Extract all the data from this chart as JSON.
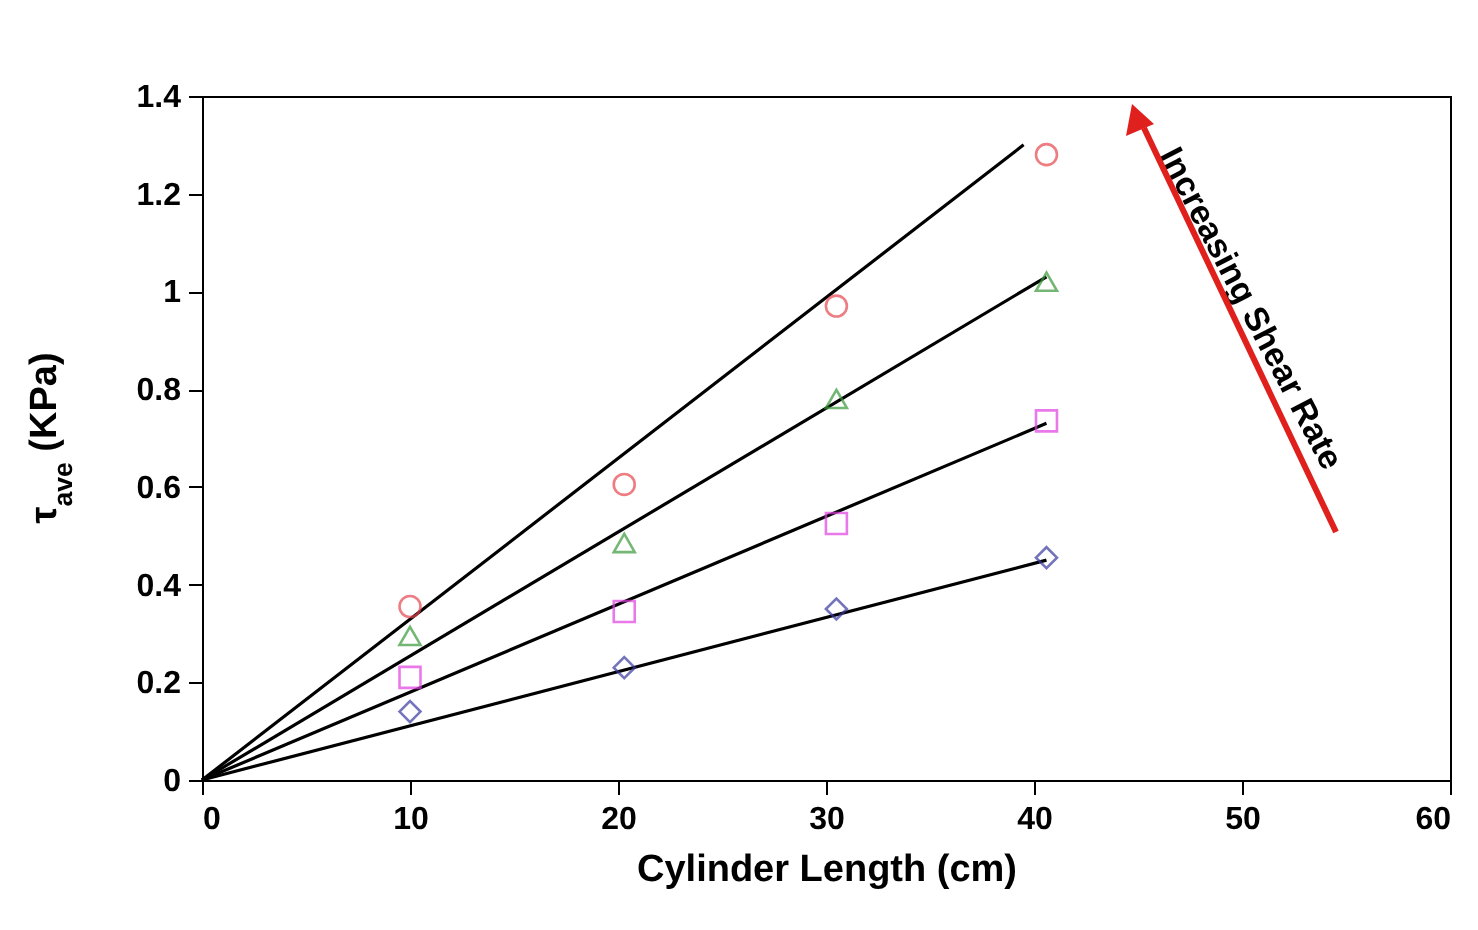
{
  "chart_data": {
    "type": "scatter",
    "xlabel": "Cylinder Length (cm)",
    "ylabel": "τ$_{ave}$ (KPa)",
    "xlim": [
      0,
      60
    ],
    "xticks": [
      0,
      10,
      20,
      30,
      40,
      50,
      60
    ],
    "ylim": [
      0,
      1.4
    ],
    "yticks": [
      0,
      0.2,
      0.4,
      0.6,
      0.8,
      1,
      1.2,
      1.4
    ],
    "annotations": [
      "Increasing Shear Rate"
    ],
    "x": [
      10,
      20.3,
      30.5,
      40.6
    ],
    "series": [
      {
        "marker": "circle",
        "color": "#e8474f",
        "values": [
          0.355,
          0.605,
          0.97,
          1.28
        ]
      },
      {
        "marker": "triangle",
        "color": "#3a9a3a",
        "values": [
          0.295,
          0.485,
          0.78,
          1.02
        ]
      },
      {
        "marker": "square",
        "color": "#e040e0",
        "values": [
          0.21,
          0.345,
          0.525,
          0.735
        ]
      },
      {
        "marker": "diamond",
        "color": "#3a3aa0",
        "values": [
          0.14,
          0.23,
          0.35,
          0.455
        ]
      },
      {
        "type": "line",
        "color": "#000000",
        "x": [
          0,
          39.5
        ],
        "values": [
          0,
          1.3
        ]
      },
      {
        "type": "line",
        "color": "#000000",
        "x": [
          0,
          40.6
        ],
        "values": [
          0,
          1.03
        ]
      },
      {
        "type": "line",
        "color": "#000000",
        "x": [
          0,
          40.6
        ],
        "values": [
          0,
          0.73
        ]
      },
      {
        "type": "line",
        "color": "#000000",
        "x": [
          0,
          40.6
        ],
        "values": [
          0,
          0.45
        ]
      }
    ]
  }
}
